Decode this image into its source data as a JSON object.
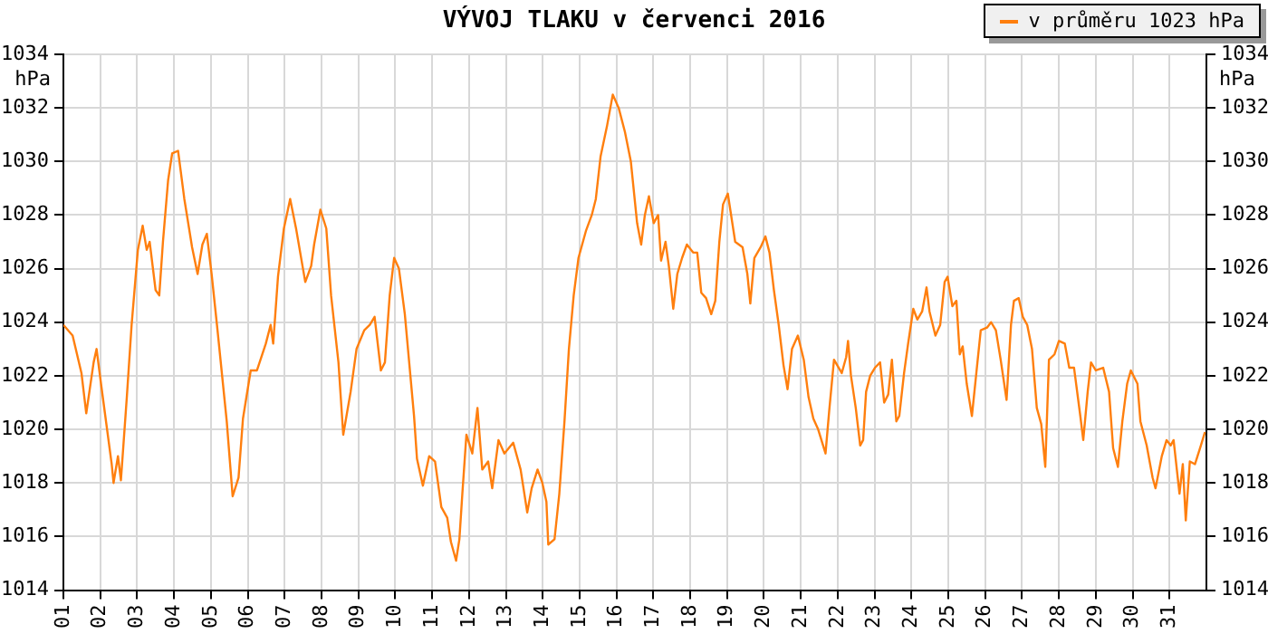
{
  "chart_data": {
    "type": "line",
    "title": "VÝVOJ TLAKU v červenci 2016",
    "ylabel": "hPa",
    "y2label": "hPa",
    "xlim": [
      1,
      32
    ],
    "xticks": [
      {
        "value": 1,
        "label": "01"
      },
      {
        "value": 2,
        "label": "02"
      },
      {
        "value": 3,
        "label": "03"
      },
      {
        "value": 4,
        "label": "04"
      },
      {
        "value": 5,
        "label": "05"
      },
      {
        "value": 6,
        "label": "06"
      },
      {
        "value": 7,
        "label": "07"
      },
      {
        "value": 8,
        "label": "08"
      },
      {
        "value": 9,
        "label": "09"
      },
      {
        "value": 10,
        "label": "10"
      },
      {
        "value": 11,
        "label": "11"
      },
      {
        "value": 12,
        "label": "12"
      },
      {
        "value": 13,
        "label": "13"
      },
      {
        "value": 14,
        "label": "14"
      },
      {
        "value": 15,
        "label": "15"
      },
      {
        "value": 16,
        "label": "16"
      },
      {
        "value": 17,
        "label": "17"
      },
      {
        "value": 18,
        "label": "18"
      },
      {
        "value": 19,
        "label": "19"
      },
      {
        "value": 20,
        "label": "20"
      },
      {
        "value": 21,
        "label": "21"
      },
      {
        "value": 22,
        "label": "22"
      },
      {
        "value": 23,
        "label": "23"
      },
      {
        "value": 24,
        "label": "24"
      },
      {
        "value": 25,
        "label": "25"
      },
      {
        "value": 26,
        "label": "26"
      },
      {
        "value": 27,
        "label": "27"
      },
      {
        "value": 28,
        "label": "28"
      },
      {
        "value": 29,
        "label": "29"
      },
      {
        "value": 30,
        "label": "30"
      },
      {
        "value": 31,
        "label": "31"
      }
    ],
    "ylim": [
      1014,
      1034
    ],
    "yticks": [
      1014,
      1016,
      1018,
      1020,
      1022,
      1024,
      1026,
      1028,
      1030,
      1032,
      1034
    ],
    "y2lim": [
      1014,
      1034
    ],
    "y2ticks": [
      1014,
      1016,
      1018,
      1020,
      1022,
      1024,
      1026,
      1028,
      1030,
      1032,
      1034
    ],
    "grid": true,
    "legend": "top right",
    "marker": "none",
    "line_style": "solid",
    "series": [
      {
        "name": "v průměru 1023 hPa",
        "color": "#ff7f0e",
        "x": [
          1.0,
          1.25,
          1.49,
          1.62,
          1.82,
          1.9,
          2.03,
          2.31,
          2.36,
          2.48,
          2.56,
          2.72,
          2.85,
          3.02,
          3.15,
          3.26,
          3.34,
          3.5,
          3.6,
          3.7,
          3.84,
          3.95,
          4.11,
          4.28,
          4.49,
          4.64,
          4.77,
          4.89,
          5.02,
          5.18,
          5.43,
          5.59,
          5.75,
          5.87,
          6.08,
          6.25,
          6.49,
          6.62,
          6.69,
          6.82,
          6.98,
          7.15,
          7.31,
          7.56,
          7.72,
          7.8,
          7.97,
          8.13,
          8.26,
          8.46,
          8.59,
          8.79,
          8.95,
          9.16,
          9.31,
          9.44,
          9.61,
          9.72,
          9.85,
          9.97,
          10.1,
          10.26,
          10.51,
          10.59,
          10.75,
          10.92,
          11.08,
          11.25,
          11.41,
          11.51,
          11.65,
          11.74,
          11.82,
          11.93,
          12.09,
          12.23,
          12.36,
          12.52,
          12.63,
          12.8,
          12.96,
          13.2,
          13.4,
          13.58,
          13.7,
          13.86,
          13.99,
          14.1,
          14.15,
          14.32,
          14.45,
          14.59,
          14.71,
          14.84,
          14.97,
          15.17,
          15.33,
          15.44,
          15.57,
          15.74,
          15.9,
          16.06,
          16.23,
          16.39,
          16.56,
          16.67,
          16.77,
          16.88,
          17.01,
          17.13,
          17.21,
          17.33,
          17.42,
          17.54,
          17.65,
          17.78,
          17.91,
          18.08,
          18.19,
          18.3,
          18.43,
          18.57,
          18.68,
          18.79,
          18.89,
          19.02,
          19.22,
          19.42,
          19.55,
          19.63,
          19.74,
          19.91,
          20.04,
          20.15,
          20.27,
          20.4,
          20.53,
          20.64,
          20.76,
          20.92,
          21.08,
          21.21,
          21.34,
          21.47,
          21.67,
          21.77,
          21.9,
          22.11,
          22.23,
          22.28,
          22.36,
          22.49,
          22.61,
          22.69,
          22.77,
          22.88,
          23.01,
          23.15,
          23.26,
          23.37,
          23.47,
          23.59,
          23.67,
          23.8,
          23.91,
          24.05,
          24.16,
          24.29,
          24.41,
          24.49,
          24.65,
          24.78,
          24.9,
          24.98,
          25.11,
          25.22,
          25.31,
          25.39,
          25.5,
          25.64,
          25.76,
          25.88,
          26.05,
          26.16,
          26.29,
          26.42,
          26.58,
          26.7,
          26.78,
          26.91,
          27.02,
          27.14,
          27.27,
          27.4,
          27.52,
          27.63,
          27.73,
          27.88,
          28.0,
          28.16,
          28.28,
          28.41,
          28.58,
          28.66,
          28.78,
          28.87,
          29.0,
          29.2,
          29.36,
          29.47,
          29.6,
          29.72,
          29.85,
          29.95,
          30.13,
          30.21,
          30.38,
          30.54,
          30.62,
          30.79,
          30.92,
          31.03,
          31.11,
          31.27,
          31.36,
          31.44,
          31.55,
          31.69,
          31.85,
          31.96
        ],
        "values": [
          1023.9,
          1023.5,
          1022.1,
          1020.6,
          1022.5,
          1023.0,
          1021.6,
          1018.7,
          1018.0,
          1019.0,
          1018.1,
          1021.2,
          1023.9,
          1026.7,
          1027.6,
          1026.7,
          1027.0,
          1025.2,
          1025.0,
          1027.0,
          1029.3,
          1030.3,
          1030.4,
          1028.6,
          1026.8,
          1025.8,
          1026.9,
          1027.3,
          1025.8,
          1023.7,
          1020.3,
          1017.5,
          1018.2,
          1020.4,
          1022.2,
          1022.2,
          1023.2,
          1023.9,
          1023.2,
          1025.7,
          1027.5,
          1028.6,
          1027.5,
          1025.5,
          1026.1,
          1026.9,
          1028.2,
          1027.5,
          1025.0,
          1022.5,
          1019.8,
          1021.4,
          1023.0,
          1023.7,
          1023.9,
          1024.2,
          1022.2,
          1022.5,
          1025.0,
          1026.4,
          1026.0,
          1024.3,
          1020.5,
          1018.9,
          1017.9,
          1019.0,
          1018.8,
          1017.1,
          1016.7,
          1015.8,
          1015.1,
          1015.9,
          1017.6,
          1019.8,
          1019.1,
          1020.8,
          1018.5,
          1018.8,
          1017.8,
          1019.6,
          1019.1,
          1019.5,
          1018.5,
          1016.9,
          1017.8,
          1018.5,
          1018.0,
          1017.3,
          1015.7,
          1015.9,
          1017.6,
          1020.3,
          1023.0,
          1025.0,
          1026.4,
          1027.4,
          1028.0,
          1028.6,
          1030.2,
          1031.3,
          1032.5,
          1032.0,
          1031.1,
          1030.0,
          1027.7,
          1026.9,
          1028.0,
          1028.7,
          1027.7,
          1028.0,
          1026.3,
          1027.0,
          1026.1,
          1024.5,
          1025.8,
          1026.4,
          1026.9,
          1026.6,
          1026.6,
          1025.1,
          1024.9,
          1024.3,
          1024.8,
          1027.0,
          1028.4,
          1028.8,
          1027.0,
          1026.8,
          1025.8,
          1024.7,
          1026.4,
          1026.8,
          1027.2,
          1026.6,
          1025.2,
          1023.9,
          1022.4,
          1021.5,
          1023.0,
          1023.5,
          1022.6,
          1021.2,
          1020.4,
          1020.0,
          1019.1,
          1020.7,
          1022.6,
          1022.1,
          1022.7,
          1023.3,
          1022.0,
          1020.8,
          1019.4,
          1019.6,
          1021.4,
          1022.0,
          1022.3,
          1022.5,
          1021.0,
          1021.3,
          1022.6,
          1020.3,
          1020.5,
          1022.1,
          1023.2,
          1024.5,
          1024.1,
          1024.4,
          1025.3,
          1024.4,
          1023.5,
          1023.9,
          1025.5,
          1025.7,
          1024.6,
          1024.8,
          1022.8,
          1023.1,
          1021.7,
          1020.5,
          1022.1,
          1023.7,
          1023.8,
          1024.0,
          1023.7,
          1022.6,
          1021.1,
          1023.9,
          1024.8,
          1024.9,
          1024.2,
          1023.9,
          1023.0,
          1020.8,
          1020.2,
          1018.6,
          1022.6,
          1022.8,
          1023.3,
          1023.2,
          1022.3,
          1022.3,
          1020.5,
          1019.6,
          1021.4,
          1022.5,
          1022.2,
          1022.3,
          1021.4,
          1019.3,
          1018.6,
          1020.3,
          1021.7,
          1022.2,
          1021.7,
          1020.3,
          1019.4,
          1018.2,
          1017.8,
          1019.0,
          1019.6,
          1019.4,
          1019.6,
          1017.6,
          1018.7,
          1016.6,
          1018.8,
          1018.7,
          1019.4,
          1019.9
        ]
      }
    ]
  }
}
